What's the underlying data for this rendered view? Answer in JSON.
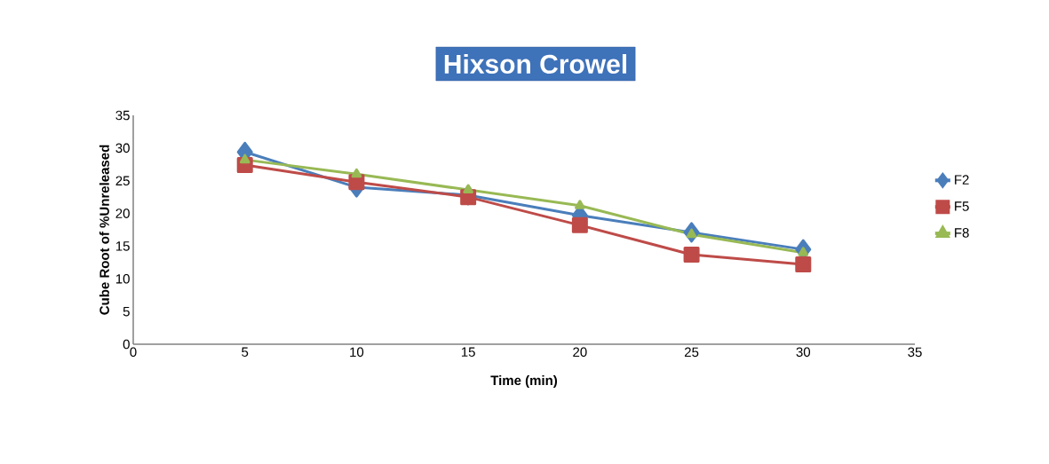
{
  "chart_data": {
    "type": "line",
    "title": "Hixson Crowel",
    "xlabel": "Time (min)",
    "ylabel": "Cube Root  of %Unreleased",
    "x": [
      5,
      10,
      15,
      20,
      25,
      30
    ],
    "series": [
      {
        "name": "F2",
        "color": "#4a7ebb",
        "marker": "diamond",
        "values": [
          29.4,
          24.0,
          22.8,
          19.7,
          17.1,
          14.5
        ]
      },
      {
        "name": "F5",
        "color": "#be4b48",
        "marker": "square",
        "values": [
          27.4,
          24.8,
          22.5,
          18.2,
          13.7,
          12.2
        ]
      },
      {
        "name": "F8",
        "color": "#98b954",
        "marker": "triangle",
        "values": [
          28.2,
          26.0,
          23.6,
          21.2,
          16.8,
          14.0
        ]
      }
    ],
    "xlim": [
      0,
      35
    ],
    "xticks": [
      0,
      5,
      10,
      15,
      20,
      25,
      30,
      35
    ],
    "ylim": [
      0,
      35
    ],
    "yticks": [
      0,
      5,
      10,
      15,
      20,
      25,
      30,
      35
    ],
    "grid": false,
    "legend": "right",
    "line_style": "solid"
  }
}
